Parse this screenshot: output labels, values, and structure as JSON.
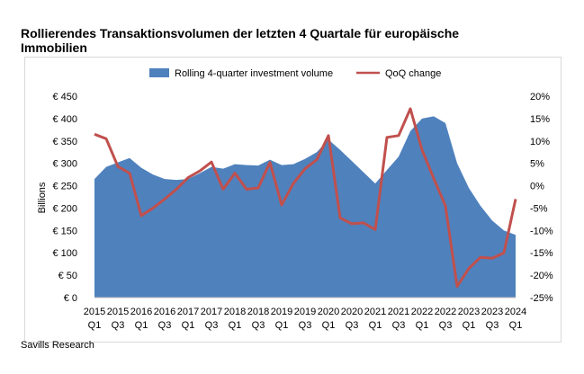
{
  "title": "Rollierendes Transaktionsvolumen der letzten 4 Quartale für europäische Immobilien",
  "source": "Savills Research",
  "chart_data": {
    "type": "area+line",
    "title": "Rollierendes Transaktionsvolumen der letzten 4 Quartale für europäische Immobilien",
    "ylabel": "Billions",
    "legend_position": "top",
    "grid": false,
    "categories": [
      "2015 Q1",
      "2015 Q2",
      "2015 Q3",
      "2015 Q4",
      "2016 Q1",
      "2016 Q2",
      "2016 Q3",
      "2016 Q4",
      "2017 Q1",
      "2017 Q2",
      "2017 Q3",
      "2017 Q4",
      "2018 Q1",
      "2018 Q2",
      "2018 Q3",
      "2018 Q4",
      "2019 Q1",
      "2019 Q2",
      "2019 Q3",
      "2019 Q4",
      "2020 Q1",
      "2020 Q2",
      "2020 Q3",
      "2020 Q4",
      "2021 Q1",
      "2021 Q2",
      "2021 Q3",
      "2021 Q4",
      "2022 Q1",
      "2022 Q2",
      "2022 Q3",
      "2022 Q4",
      "2023 Q1",
      "2023 Q2",
      "2023 Q3",
      "2023 Q4",
      "2024 Q1"
    ],
    "x_tick_labels_top": [
      "2015",
      "2015",
      "2016",
      "2016",
      "2017",
      "2017",
      "2018",
      "2018",
      "2019",
      "2019",
      "2020",
      "2020",
      "2021",
      "2021",
      "2022",
      "2022",
      "2023",
      "2023",
      "2024"
    ],
    "x_tick_labels_bottom": [
      "Q1",
      "Q3",
      "Q1",
      "Q3",
      "Q1",
      "Q3",
      "Q1",
      "Q3",
      "Q1",
      "Q3",
      "Q1",
      "Q3",
      "Q1",
      "Q3",
      "Q1",
      "Q3",
      "Q1",
      "Q3",
      "Q1"
    ],
    "left_axis": {
      "ylim": [
        0,
        450
      ],
      "ticks": [
        0,
        50,
        100,
        150,
        200,
        250,
        300,
        350,
        400,
        450
      ],
      "tick_labels": [
        "€ 0",
        "€ 50",
        "€ 100",
        "€ 150",
        "€ 200",
        "€ 250",
        "€ 300",
        "€ 350",
        "€ 400",
        "€ 450"
      ]
    },
    "right_axis": {
      "ylim": [
        -25,
        20
      ],
      "ticks": [
        -25,
        -20,
        -15,
        -10,
        -5,
        0,
        5,
        10,
        15,
        20
      ],
      "tick_labels": [
        "-25%",
        "-20%",
        "-15%",
        "-10%",
        "-5%",
        "0%",
        "5%",
        "10%",
        "15%",
        "20%"
      ]
    },
    "series": [
      {
        "name": "Rolling 4-quarter investment volume",
        "type": "area",
        "axis": "left",
        "color": "#4f81bd",
        "values": [
          265,
          292,
          302,
          312,
          290,
          275,
          265,
          263,
          265,
          278,
          292,
          288,
          298,
          296,
          295,
          308,
          296,
          298,
          310,
          325,
          353,
          330,
          305,
          280,
          255,
          285,
          315,
          372,
          400,
          405,
          390,
          300,
          245,
          205,
          172,
          150,
          140
        ]
      },
      {
        "name": "QoQ change",
        "type": "line",
        "axis": "right",
        "color": "#c0504d",
        "values": [
          11.5,
          10.5,
          4.3,
          2.8,
          -6.7,
          -5,
          -3,
          -0.8,
          1.8,
          3.3,
          5.3,
          -0.8,
          2.8,
          -0.8,
          -0.5,
          5.2,
          -4.3,
          0.5,
          3.8,
          5.8,
          11.2,
          -7.2,
          -8.5,
          -8.3,
          -9.8,
          10.8,
          11.2,
          17.2,
          8,
          1.6,
          -4.5,
          -22.5,
          -18.5,
          -16,
          -16.2,
          -15,
          -3
        ]
      }
    ]
  }
}
